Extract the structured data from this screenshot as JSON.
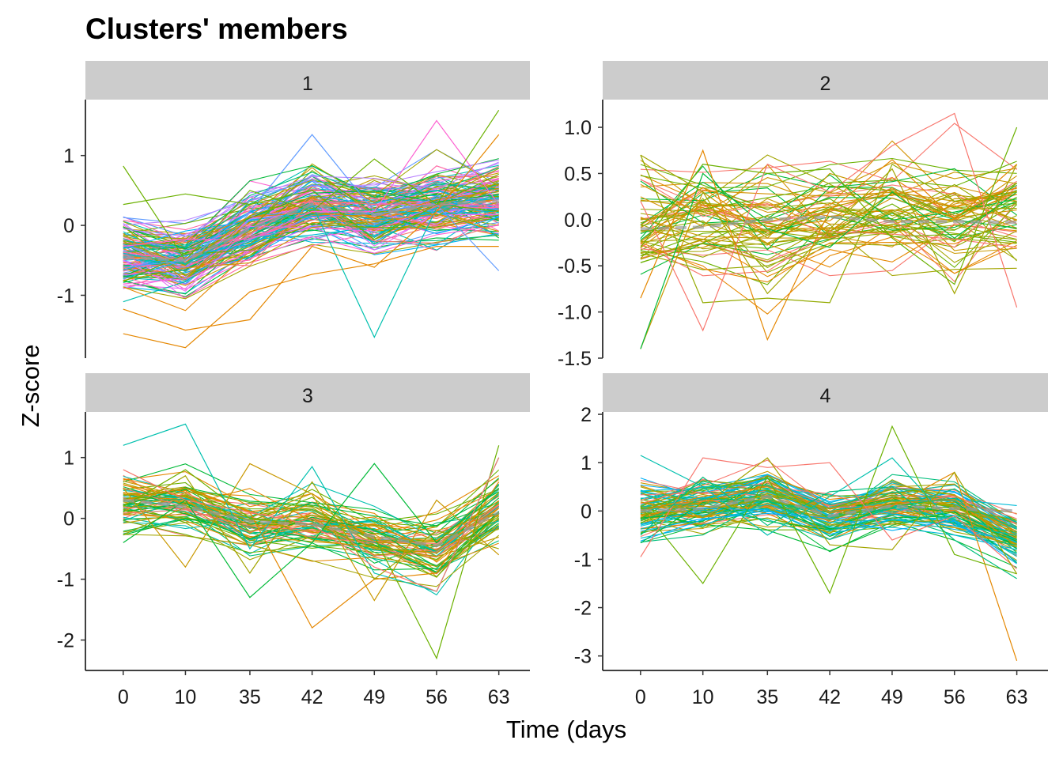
{
  "chart_data": {
    "type": "line",
    "title": "Clusters' members",
    "xlabel": "Time (days",
    "ylabel": "Z-score",
    "x_categories": [
      "0",
      "10",
      "35",
      "42",
      "49",
      "56",
      "63"
    ],
    "panels": [
      {
        "label": "1",
        "ylim": [
          -1.9,
          1.8
        ],
        "yticks": [
          -1,
          0,
          1
        ],
        "ytick_labels": [
          "-1",
          "0",
          "1"
        ],
        "line_count": 140,
        "palette": [
          "#F8766D",
          "#E58700",
          "#C99800",
          "#A3A500",
          "#6BB100",
          "#00BA38",
          "#00BF7D",
          "#00C0AF",
          "#00BCD8",
          "#00B0F6",
          "#619CFF",
          "#B983FF",
          "#E76BF3",
          "#FD61D1",
          "#FF67A4"
        ],
        "profile": [
          -0.45,
          -0.5,
          -0.05,
          0.3,
          0.15,
          0.3,
          0.35
        ],
        "spread": 0.32,
        "mean": [
          -0.45,
          -0.5,
          -0.05,
          0.3,
          0.15,
          0.3,
          0.35
        ],
        "series": [
          {
            "values": [
              -1.55,
              -1.75,
              -0.95,
              -0.7,
              -0.55,
              -0.3,
              -0.3
            ]
          },
          {
            "values": [
              0.85,
              -0.5,
              0.5,
              0.2,
              0.95,
              0.3,
              0.2
            ]
          },
          {
            "values": [
              -0.4,
              -0.55,
              -0.05,
              0.3,
              -1.6,
              0.25,
              0.4
            ]
          },
          {
            "values": [
              -0.6,
              -0.5,
              0.2,
              1.3,
              0.2,
              0.3,
              -0.65
            ]
          },
          {
            "values": [
              -0.3,
              -0.2,
              -0.2,
              0.2,
              0.2,
              1.5,
              0.3
            ]
          },
          {
            "values": [
              -1.2,
              -1.5,
              -1.35,
              -0.3,
              -0.6,
              0.2,
              1.3
            ]
          },
          {
            "values": [
              0.3,
              0.45,
              0.3,
              0.5,
              -0.2,
              0.3,
              1.65
            ]
          }
        ]
      },
      {
        "label": "2",
        "ylim": [
          -1.5,
          1.3
        ],
        "yticks": [
          -1.5,
          -1.0,
          -0.5,
          0.0,
          0.5,
          1.0
        ],
        "ytick_labels": [
          "-1.5",
          "-1.0",
          "-0.5",
          "0.0",
          "0.5",
          "1.0"
        ],
        "line_count": 60,
        "palette": [
          "#F8766D",
          "#C99800",
          "#A3A500",
          "#6BB100",
          "#00BA38",
          "#E58700",
          "#D39200",
          "#93AA00"
        ],
        "profile": [
          -0.1,
          0.0,
          -0.1,
          0.0,
          0.05,
          0.0,
          0.1
        ],
        "spread": 0.4,
        "mean": [
          -0.1,
          -0.08,
          0.0,
          0.03,
          -0.02,
          -0.02,
          -0.03
        ],
        "series": [
          {
            "values": [
              -1.4,
              0.3,
              -0.2,
              0.5,
              0.3,
              0.2,
              0.0
            ]
          },
          {
            "values": [
              -1.4,
              0.5,
              -0.1,
              -0.3,
              0.3,
              -0.2,
              0.3
            ]
          },
          {
            "values": [
              0.7,
              -0.9,
              -0.85,
              -0.9,
              0.6,
              0.2,
              0.3
            ]
          },
          {
            "values": [
              0.7,
              0.3,
              -0.8,
              -0.1,
              0.55,
              -0.8,
              0.6
            ]
          },
          {
            "values": [
              -0.85,
              0.75,
              -1.3,
              0.1,
              0.65,
              0.0,
              0.6
            ]
          },
          {
            "values": [
              0.2,
              -1.2,
              0.6,
              0.3,
              0.8,
              1.15,
              -0.95
            ]
          },
          {
            "values": [
              -0.3,
              0.6,
              0.5,
              0.55,
              -0.2,
              -0.7,
              1.0
            ]
          }
        ]
      },
      {
        "label": "3",
        "ylim": [
          -2.5,
          1.75
        ],
        "yticks": [
          -2,
          -1,
          0,
          1
        ],
        "ytick_labels": [
          "-2",
          "-1",
          "0",
          "1"
        ],
        "line_count": 70,
        "palette": [
          "#F8766D",
          "#E58700",
          "#C99800",
          "#A3A500",
          "#6BB100",
          "#00BA38",
          "#00BF7D",
          "#00C0AF"
        ],
        "profile": [
          0.3,
          0.25,
          -0.1,
          -0.05,
          -0.3,
          -0.5,
          0.2
        ],
        "spread": 0.32,
        "mean": [
          0.3,
          0.2,
          -0.05,
          -0.1,
          -0.3,
          -0.45,
          0.1
        ],
        "series": [
          {
            "values": [
              0.3,
              0.5,
              0.1,
              -1.8,
              -1.0,
              -0.9,
              0.6
            ]
          },
          {
            "values": [
              0.2,
              0.8,
              0.0,
              -0.1,
              -0.3,
              -2.3,
              1.2
            ]
          },
          {
            "values": [
              1.2,
              1.55,
              -0.5,
              0.85,
              -0.9,
              -1.2,
              1.0
            ]
          },
          {
            "values": [
              0.5,
              -0.8,
              0.9,
              0.4,
              -1.35,
              0.3,
              -0.6
            ]
          },
          {
            "values": [
              -0.4,
              0.3,
              -1.3,
              -0.4,
              0.9,
              -0.4,
              0.5
            ]
          },
          {
            "values": [
              0.8,
              0.3,
              0.1,
              -0.1,
              -0.8,
              -1.2,
              1.0
            ]
          },
          {
            "values": [
              0.1,
              0.7,
              -0.9,
              0.6,
              -1.0,
              -0.2,
              -0.5
            ]
          }
        ]
      },
      {
        "label": "4",
        "ylim": [
          -3.3,
          2.05
        ],
        "yticks": [
          -3,
          -2,
          -1,
          0,
          1,
          2
        ],
        "ytick_labels": [
          "-3",
          "-2",
          "-1",
          "0",
          "1",
          "2"
        ],
        "line_count": 90,
        "palette": [
          "#F8766D",
          "#E58700",
          "#C99800",
          "#A3A500",
          "#6BB100",
          "#00BA38",
          "#00BF7D",
          "#00C0AF",
          "#00BCD8",
          "#00B0F6"
        ],
        "profile": [
          0.0,
          0.1,
          0.3,
          -0.15,
          0.15,
          0.05,
          -0.55
        ],
        "spread": 0.38,
        "mean": [
          0.0,
          0.05,
          0.3,
          -0.1,
          0.1,
          0.05,
          0.0
        ],
        "series": [
          {
            "values": [
              0.0,
              0.3,
              0.5,
              0.0,
              0.1,
              0.8,
              -3.1
            ]
          },
          {
            "values": [
              0.1,
              -1.5,
              0.7,
              -1.7,
              1.75,
              -0.9,
              -1.3
            ]
          },
          {
            "values": [
              1.15,
              0.5,
              -0.5,
              0.3,
              1.1,
              -0.3,
              -0.5
            ]
          },
          {
            "values": [
              -0.95,
              1.1,
              0.9,
              1.0,
              -0.6,
              -0.1,
              -1.2
            ]
          },
          {
            "values": [
              0.5,
              0.1,
              1.1,
              -0.7,
              -0.8,
              0.8,
              -1.3
            ]
          },
          {
            "values": [
              -0.5,
              0.7,
              -0.3,
              0.4,
              0.5,
              -0.6,
              -1.4
            ]
          }
        ]
      }
    ]
  }
}
